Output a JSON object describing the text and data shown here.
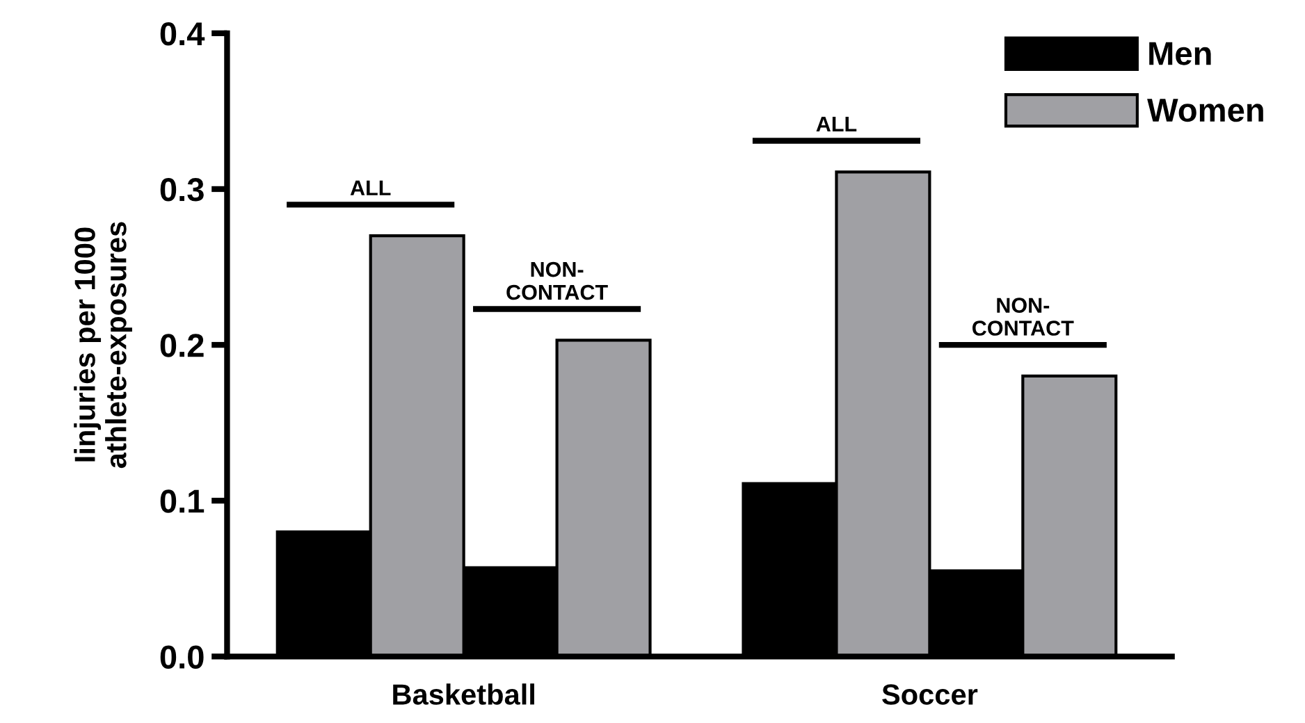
{
  "chart_data": {
    "type": "bar",
    "ylabel": "Iinjuries per 1000\nathlete-exposures",
    "categories": [
      "ALL",
      "NON-CONTACT",
      "ALL",
      "NON-CONTACT"
    ],
    "series": [
      {
        "name": "Men",
        "color": "#000000",
        "values": [
          0.08,
          0.057,
          0.111,
          0.055
        ]
      },
      {
        "name": "Women",
        "color": "#a0a0a4",
        "values": [
          0.27,
          0.203,
          0.311,
          0.18
        ]
      }
    ],
    "annotations": [
      "Basketball",
      "Soccer"
    ],
    "ylim": [
      0,
      0.4
    ],
    "yticks": [
      {
        "value": 0,
        "label": "0.0"
      },
      {
        "value": 0.1,
        "label": "0.1"
      },
      {
        "value": 0.2,
        "label": "0.2"
      },
      {
        "value": 0.3,
        "label": "0.3"
      },
      {
        "value": 0.4,
        "label": "0.4"
      }
    ],
    "legend": "top right",
    "grid": false
  }
}
